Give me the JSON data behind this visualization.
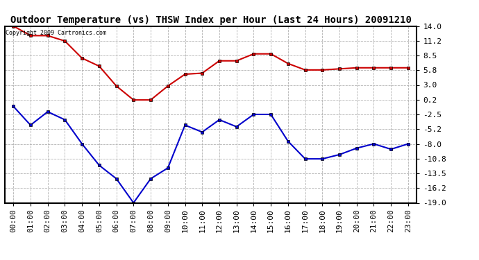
{
  "title": "Outdoor Temperature (vs) THSW Index per Hour (Last 24 Hours) 20091210",
  "copyright_text": "Copyright 2009 Cartronics.com",
  "hours": [
    "00:00",
    "01:00",
    "02:00",
    "03:00",
    "04:00",
    "05:00",
    "06:00",
    "07:00",
    "08:00",
    "09:00",
    "10:00",
    "11:00",
    "12:00",
    "13:00",
    "14:00",
    "15:00",
    "16:00",
    "17:00",
    "18:00",
    "19:00",
    "20:00",
    "21:00",
    "22:00",
    "23:00"
  ],
  "red_data": [
    14.0,
    12.2,
    12.2,
    11.2,
    8.0,
    6.5,
    2.8,
    0.2,
    0.2,
    2.8,
    5.0,
    5.2,
    7.5,
    7.5,
    8.8,
    8.8,
    7.0,
    5.8,
    5.8,
    6.0,
    6.2,
    6.2,
    6.2,
    6.2
  ],
  "blue_data": [
    -1.0,
    -4.5,
    -2.0,
    -3.5,
    -8.0,
    -12.0,
    -14.5,
    -19.0,
    -14.5,
    -12.5,
    -4.5,
    -5.8,
    -3.5,
    -4.8,
    -2.5,
    -2.5,
    -7.5,
    -10.8,
    -10.8,
    -10.0,
    -8.8,
    -8.0,
    -9.0,
    -8.0
  ],
  "red_color": "#cc0000",
  "blue_color": "#0000cc",
  "background_color": "#ffffff",
  "grid_color": "#aaaaaa",
  "ylim_min": -19.0,
  "ylim_max": 14.0,
  "yticks": [
    14.0,
    11.2,
    8.5,
    5.8,
    3.0,
    0.2,
    -2.5,
    -5.2,
    -8.0,
    -10.8,
    -13.5,
    -16.2,
    -19.0
  ],
  "title_fontsize": 10,
  "tick_fontsize": 8,
  "copyright_fontsize": 6
}
